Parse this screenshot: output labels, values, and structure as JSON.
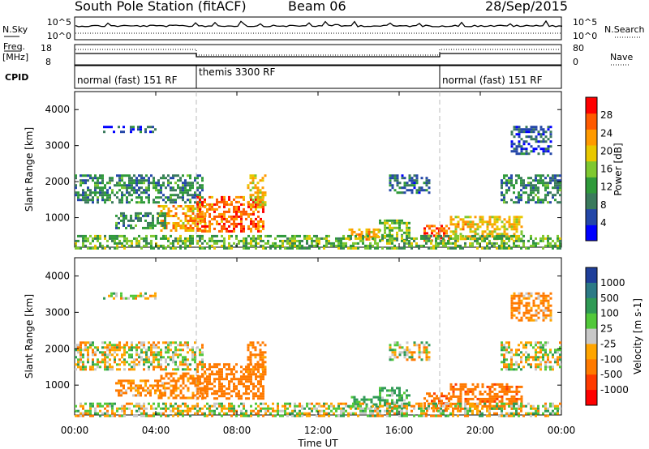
{
  "header": {
    "title": "South Pole Station (fitACF)",
    "beam": "Beam 06",
    "date": "28/Sep/2015"
  },
  "sky_panel": {
    "left_label": "N.Sky",
    "left_ticks": [
      "10^5",
      "10^0"
    ],
    "right_label": "N.Search",
    "right_ticks": [
      "10^5",
      "10^0"
    ]
  },
  "freq_panel": {
    "left_label_1": "Freq.",
    "left_label_2": "[MHz]",
    "left_ticks": [
      "18",
      "8"
    ],
    "right_label": "Nave",
    "right_ticks": [
      "80",
      "0"
    ]
  },
  "cpid": {
    "label": "CPID",
    "segments": [
      {
        "name": "normal (fast) 151 RF",
        "start": 0,
        "end": 6
      },
      {
        "name": "themis 3300 RF",
        "start": 6,
        "end": 18
      },
      {
        "name": "normal (fast) 151 RF",
        "start": 18,
        "end": 24
      }
    ]
  },
  "chart_data": [
    {
      "type": "heatmap",
      "title": "Power",
      "ylabel": "Slant Range [km]",
      "xlabel": "Time UT",
      "xlim": [
        0,
        24
      ],
      "ylim": [
        180,
        4500
      ],
      "y_ticks": [
        "1000",
        "2000",
        "3000",
        "4000"
      ],
      "colorbar": {
        "label": "Power [dB]",
        "ticks": [
          "4",
          "8",
          "12",
          "16",
          "20",
          "24",
          "28"
        ],
        "range": [
          0,
          32
        ],
        "colors": [
          "#0000ff",
          "#2447a8",
          "#3a7a5c",
          "#2f9a3a",
          "#7fc830",
          "#e8c800",
          "#ff9a00",
          "#ff5a00",
          "#ff0000"
        ]
      },
      "echo_regions": [
        {
          "t0": 0.0,
          "t1": 6.3,
          "r0": 1450,
          "r1": 2200,
          "value": 10
        },
        {
          "t0": 4.1,
          "t1": 6.5,
          "r0": 650,
          "r1": 1350,
          "value": 22
        },
        {
          "t0": 6.0,
          "t1": 9.3,
          "r0": 600,
          "r1": 1600,
          "value": 26
        },
        {
          "t0": 8.5,
          "t1": 9.4,
          "r0": 1300,
          "r1": 2200,
          "value": 20
        },
        {
          "t0": 2.0,
          "t1": 4.5,
          "r0": 700,
          "r1": 1150,
          "value": 10
        },
        {
          "t0": 1.4,
          "t1": 4.0,
          "r0": 3350,
          "r1": 3550,
          "value": 6
        },
        {
          "t0": 13.5,
          "t1": 15.0,
          "r0": 380,
          "r1": 700,
          "value": 22
        },
        {
          "t0": 15.0,
          "t1": 16.5,
          "r0": 400,
          "r1": 950,
          "value": 15
        },
        {
          "t0": 15.5,
          "t1": 17.5,
          "r0": 1700,
          "r1": 2200,
          "value": 8
        },
        {
          "t0": 17.2,
          "t1": 18.5,
          "r0": 330,
          "r1": 800,
          "value": 26
        },
        {
          "t0": 18.5,
          "t1": 22.0,
          "r0": 380,
          "r1": 1050,
          "value": 20
        },
        {
          "t0": 21.0,
          "t1": 24.0,
          "r0": 1400,
          "r1": 2200,
          "value": 10
        },
        {
          "t0": 21.5,
          "t1": 23.5,
          "r0": 2800,
          "r1": 3550,
          "value": 6
        },
        {
          "t0": 0.0,
          "t1": 24.0,
          "r0": 180,
          "r1": 520,
          "value": 14
        }
      ]
    },
    {
      "type": "heatmap",
      "title": "Velocity",
      "ylabel": "Slant Range [km]",
      "xlabel": "Time UT",
      "xlim": [
        0,
        24
      ],
      "ylim": [
        180,
        4500
      ],
      "x_ticks": [
        "00:00",
        "04:00",
        "08:00",
        "12:00",
        "16:00",
        "20:00",
        "00:00"
      ],
      "y_ticks": [
        "1000",
        "2000",
        "3000",
        "4000"
      ],
      "colorbar": {
        "label": "Velocity [m s-1]",
        "ticks": [
          "1000",
          "500",
          "100",
          "25",
          "-25",
          "-100",
          "-500",
          "-1000"
        ],
        "colors": [
          "#1f3f9a",
          "#2c7a86",
          "#2f9a55",
          "#52c83a",
          "#c8c8c8",
          "#ffa500",
          "#ff7a00",
          "#ff3a00",
          "#ff0000"
        ]
      },
      "echo_regions": [
        {
          "t0": 0.0,
          "t1": 6.3,
          "r0": 1450,
          "r1": 2200,
          "value": 0
        },
        {
          "t0": 4.1,
          "t1": 6.5,
          "r0": 650,
          "r1": 1350,
          "value": -200
        },
        {
          "t0": 6.0,
          "t1": 9.3,
          "r0": 600,
          "r1": 1600,
          "value": -300
        },
        {
          "t0": 8.5,
          "t1": 9.4,
          "r0": 1300,
          "r1": 2200,
          "value": -200
        },
        {
          "t0": 2.0,
          "t1": 4.5,
          "r0": 700,
          "r1": 1150,
          "value": -150
        },
        {
          "t0": 1.4,
          "t1": 4.0,
          "r0": 3350,
          "r1": 3550,
          "value": 0
        },
        {
          "t0": 13.5,
          "t1": 15.0,
          "r0": 380,
          "r1": 700,
          "value": 200
        },
        {
          "t0": 15.0,
          "t1": 16.5,
          "r0": 400,
          "r1": 950,
          "value": 150
        },
        {
          "t0": 15.5,
          "t1": 17.5,
          "r0": 1700,
          "r1": 2200,
          "value": 0
        },
        {
          "t0": 17.2,
          "t1": 18.5,
          "r0": 330,
          "r1": 800,
          "value": -400
        },
        {
          "t0": 18.5,
          "t1": 22.0,
          "r0": 380,
          "r1": 1050,
          "value": -400
        },
        {
          "t0": 21.0,
          "t1": 24.0,
          "r0": 1400,
          "r1": 2200,
          "value": 0
        },
        {
          "t0": 21.5,
          "t1": 23.5,
          "r0": 2800,
          "r1": 3550,
          "value": -150
        },
        {
          "t0": 0.0,
          "t1": 24.0,
          "r0": 180,
          "r1": 520,
          "value": 0
        }
      ]
    }
  ]
}
